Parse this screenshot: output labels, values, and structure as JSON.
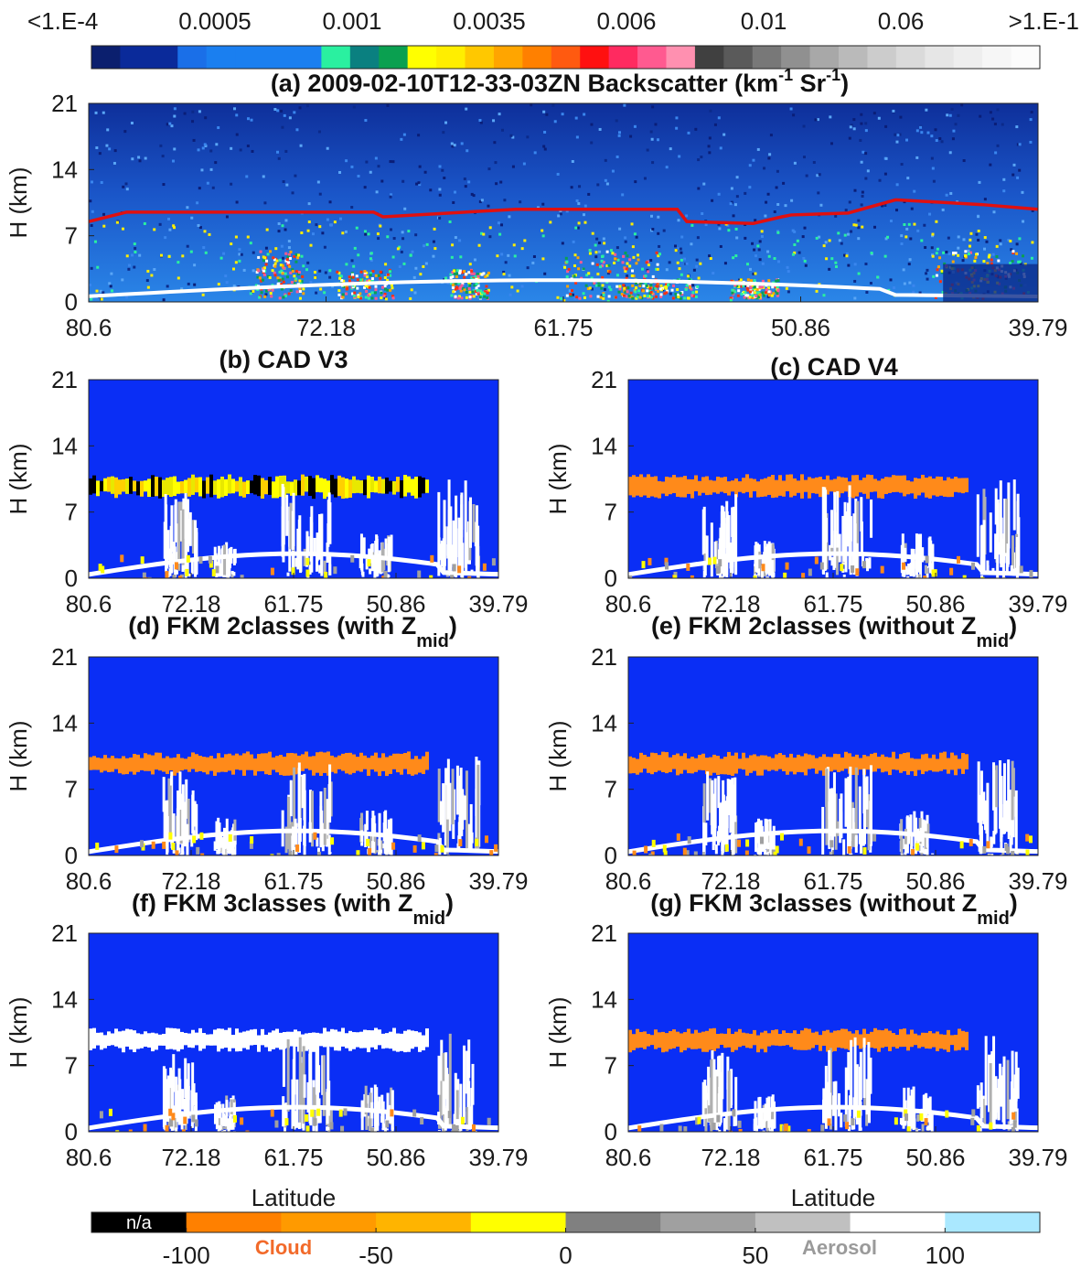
{
  "colorbar_top": {
    "labels": [
      "<1.E-4",
      "0.0005",
      "0.001",
      "0.0035",
      "0.006",
      "0.01",
      "0.06",
      ">1.E-1"
    ],
    "colors": [
      "#0b1f6e",
      "#0a2a9a",
      "#0a2a9a",
      "#1a6fe8",
      "#1a7ff0",
      "#1a7ff0",
      "#1a7ff0",
      "#1a7ff0",
      "#2af0a0",
      "#0a8080",
      "#0aa050",
      "#ffff00",
      "#ffee00",
      "#ffc800",
      "#ffa500",
      "#ff8000",
      "#ff5a10",
      "#ff1010",
      "#ff2a60",
      "#ff5a90",
      "#ff90b0",
      "#404040",
      "#5a5a5a",
      "#787878",
      "#909090",
      "#a8a8a8",
      "#bababa",
      "#cccccc",
      "#dadada",
      "#e6e6e6",
      "#eeeeee",
      "#f6f6f6",
      "#fcfcfc"
    ]
  },
  "chart_data": [
    {
      "type": "backscatter",
      "title_parts": [
        {
          "text": "(a) 2009-02-10T12-33-03ZN Backscatter (km"
        },
        {
          "text": "-1",
          "shift": "super"
        },
        {
          "text": " Sr"
        },
        {
          "text": "-1",
          "shift": "super"
        },
        {
          "text": ")"
        }
      ],
      "ylabel": "H (km)",
      "ylim": [
        0,
        21
      ],
      "yticks": [
        0,
        7,
        14,
        21
      ],
      "xtick_labels": [
        "80.6",
        "72.18",
        "61.75",
        "50.86",
        "39.79"
      ]
    },
    {
      "type": "classification",
      "title_parts": [
        {
          "text": "(b) CAD V3"
        }
      ],
      "ylabel": "H (km)",
      "ylim": [
        0,
        21
      ],
      "yticks": [
        0,
        7,
        14,
        21
      ],
      "xtick_labels": [
        "80.6",
        "72.18",
        "61.75",
        "50.86",
        "39.79"
      ]
    },
    {
      "type": "classification",
      "title_parts": [
        {
          "text": "(c) CAD V4"
        }
      ],
      "ylabel": "H (km)",
      "ylim": [
        0,
        21
      ],
      "yticks": [
        0,
        7,
        14,
        21
      ],
      "xtick_labels": [
        "80.6",
        "72.18",
        "61.75",
        "50.86",
        "39.79"
      ]
    },
    {
      "type": "classification",
      "title_parts": [
        {
          "text": "(d) FKM 2classes (with Z"
        },
        {
          "text": "mid",
          "shift": "sub"
        },
        {
          "text": ")"
        }
      ],
      "ylabel": "H (km)",
      "ylim": [
        0,
        21
      ],
      "yticks": [
        0,
        7,
        14,
        21
      ],
      "xtick_labels": [
        "80.6",
        "72.18",
        "61.75",
        "50.86",
        "39.79"
      ]
    },
    {
      "type": "classification",
      "title_parts": [
        {
          "text": "(e) FKM 2classes (without Z"
        },
        {
          "text": "mid",
          "shift": "sub"
        },
        {
          "text": ")"
        }
      ],
      "ylabel": "H (km)",
      "ylim": [
        0,
        21
      ],
      "yticks": [
        0,
        7,
        14,
        21
      ],
      "xtick_labels": [
        "80.6",
        "72.18",
        "61.75",
        "50.86",
        "39.79"
      ]
    },
    {
      "type": "classification",
      "title_parts": [
        {
          "text": "(f) FKM 3classes (with Z"
        },
        {
          "text": "mid",
          "shift": "sub"
        },
        {
          "text": ")"
        }
      ],
      "ylabel": "H (km)",
      "ylim": [
        0,
        21
      ],
      "yticks": [
        0,
        7,
        14,
        21
      ],
      "xtick_labels": [
        "80.6",
        "72.18",
        "61.75",
        "50.86",
        "39.79"
      ],
      "xlabel": "Latitude"
    },
    {
      "type": "classification",
      "title_parts": [
        {
          "text": "(g) FKM 3classes (without Z"
        },
        {
          "text": "mid",
          "shift": "sub"
        },
        {
          "text": ")"
        }
      ],
      "ylabel": "H (km)",
      "ylim": [
        0,
        21
      ],
      "yticks": [
        0,
        7,
        14,
        21
      ],
      "xtick_labels": [
        "80.6",
        "72.18",
        "61.75",
        "50.86",
        "39.79"
      ],
      "xlabel": "Latitude"
    }
  ],
  "colorbar_bottom": {
    "clim": [
      -125,
      125
    ],
    "ticks": [
      -100,
      -50,
      0,
      50,
      100
    ],
    "colors": [
      "#000000",
      "#ff8000",
      "#ff9a00",
      "#ffb400",
      "#ffff00",
      "#808080",
      "#a0a0a0",
      "#c0c0c0",
      "#ffffff",
      "#aae8ff"
    ],
    "na_label": "n/a",
    "class_labels": [
      {
        "text": "Cloud",
        "color": "#f26a2a"
      },
      {
        "text": "Aerosol",
        "color": "#9a9a9a"
      }
    ]
  }
}
